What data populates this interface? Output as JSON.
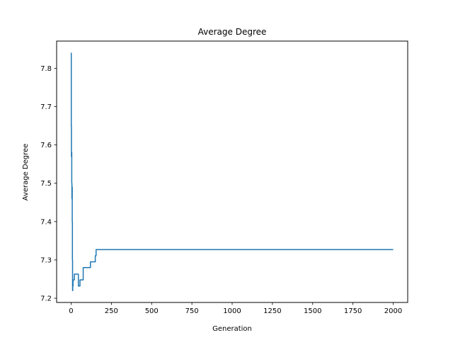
{
  "chart_data": {
    "type": "line",
    "title": "Average Degree",
    "xlabel": "Generation",
    "ylabel": "Average Degree",
    "xlim": [
      -90,
      2090
    ],
    "ylim": [
      7.189,
      7.871
    ],
    "x_ticks": [
      0,
      250,
      500,
      750,
      1000,
      1250,
      1500,
      1750,
      2000
    ],
    "x_tick_labels": [
      "0",
      "250",
      "500",
      "750",
      "1000",
      "1250",
      "1500",
      "1750",
      "2000"
    ],
    "y_ticks": [
      7.2,
      7.3,
      7.4,
      7.5,
      7.6,
      7.7,
      7.8
    ],
    "y_tick_labels": [
      "7.2",
      "7.3",
      "7.4",
      "7.5",
      "7.6",
      "7.7",
      "7.8"
    ],
    "grid": false,
    "color": "#1f77b4",
    "series": [
      {
        "x": [
          0,
          1,
          1,
          2,
          2,
          3,
          3,
          4,
          4,
          5,
          5,
          6,
          6,
          7,
          7,
          8,
          8,
          9,
          9,
          10,
          10,
          12,
          12,
          20,
          20,
          30,
          30,
          45,
          45,
          55,
          55,
          75,
          75,
          80,
          80,
          120,
          120,
          150,
          150,
          155,
          155,
          160,
          160,
          2000
        ],
        "y": [
          7.84,
          7.84,
          7.65,
          7.65,
          7.57,
          7.57,
          7.58,
          7.58,
          7.5,
          7.5,
          7.46,
          7.46,
          7.49,
          7.49,
          7.4,
          7.4,
          7.3,
          7.3,
          7.22,
          7.22,
          7.232,
          7.232,
          7.248,
          7.248,
          7.263,
          7.263,
          7.263,
          7.263,
          7.232,
          7.232,
          7.248,
          7.248,
          7.28,
          7.28,
          7.28,
          7.28,
          7.295,
          7.295,
          7.311,
          7.311,
          7.327,
          7.327,
          7.327,
          7.327
        ]
      }
    ]
  }
}
